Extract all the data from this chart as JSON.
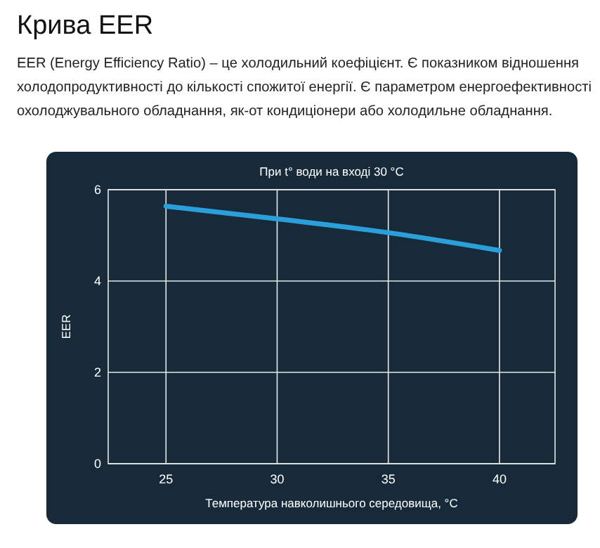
{
  "chart_data": {
    "type": "line",
    "title": "Крива EER",
    "subtitle": "EER (Energy Efficiency Ratio) – це холодильний коефіцієнт. Є показником відношення холодопродуктивності до кількості спожитої енергії. Є параметром енергоефективності охолоджувального обладнання, як-от кондиціонери або холодильне обладнання.",
    "annotations": [
      "При t° води на вході 30 °C"
    ],
    "xlabel": "Температура навколишнього середовища, °C",
    "ylabel": "EER",
    "x": [
      25,
      30,
      35,
      40
    ],
    "series": [
      {
        "color": "#2b9fd9",
        "values": [
          5.64,
          5.36,
          5.06,
          4.67
        ]
      }
    ],
    "xlim": [
      22.4,
      42.5
    ],
    "xticks": [
      25,
      30,
      35,
      40
    ],
    "ylim": [
      0,
      6
    ],
    "yticks": [
      0,
      2,
      4,
      6
    ],
    "grid": true,
    "marker": "none",
    "line_style": "solid"
  }
}
